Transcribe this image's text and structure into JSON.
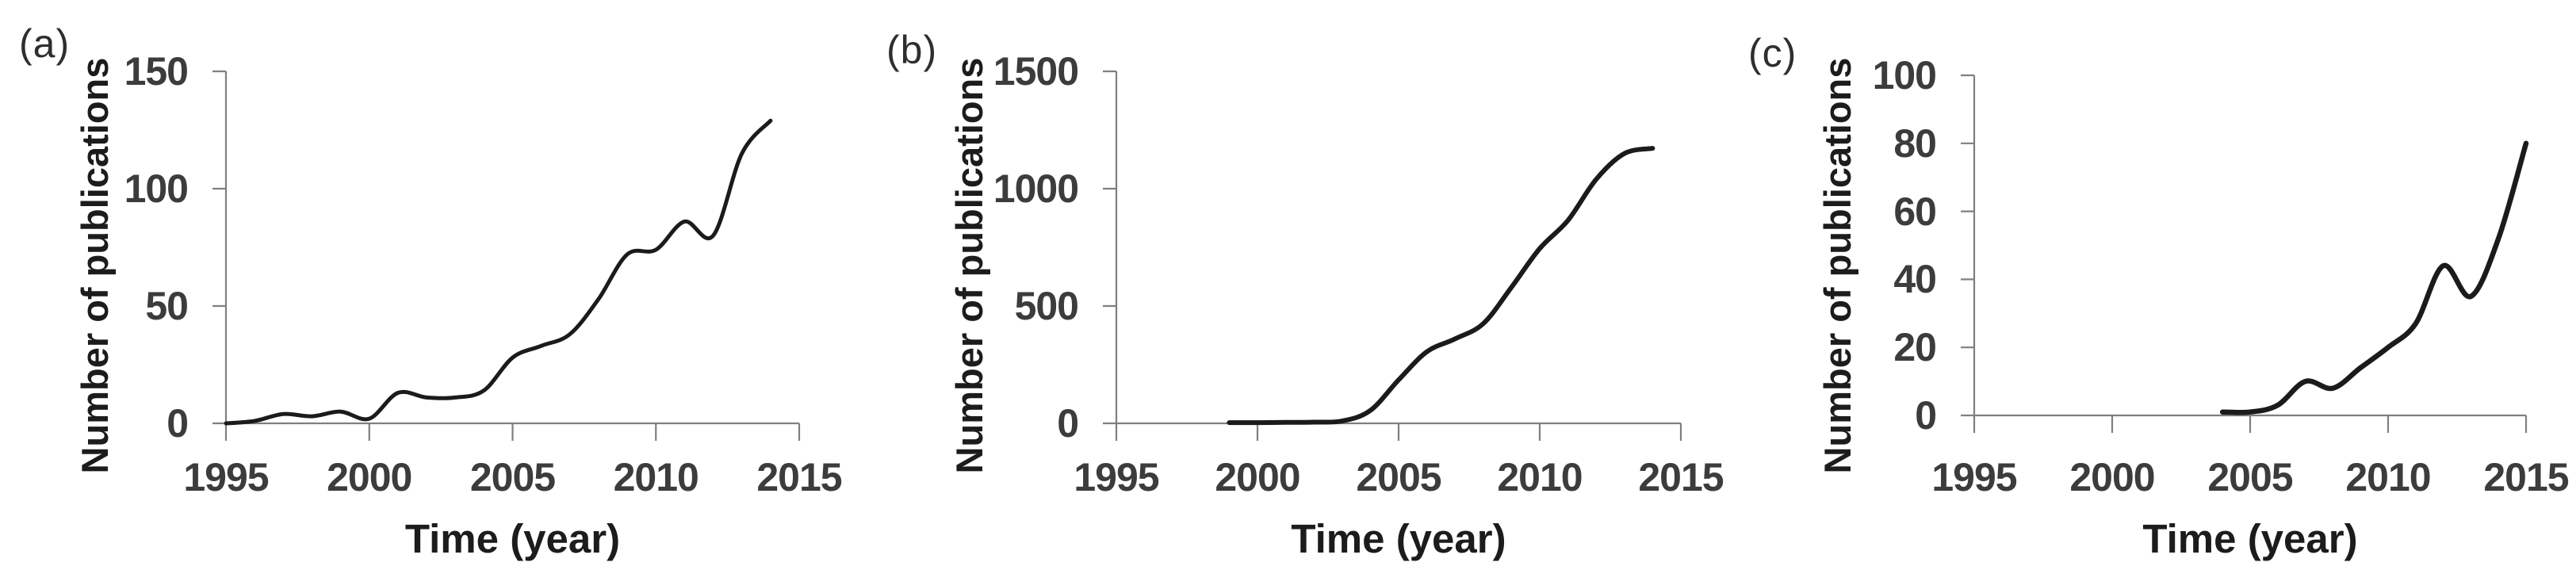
{
  "figure": {
    "background": "#ffffff",
    "description": "Three smoothed line charts of publication counts over time, panels (a), (b), (c)"
  },
  "style": {
    "curve_color": "#1b1b1b",
    "axis_color": "#7f7f7f",
    "tick_label_color": "#3c3c3c",
    "title_color": "#1c1c1c",
    "panel_label_color": "#2e2e2e"
  },
  "chart_data": [
    {
      "panel_label": "(a)",
      "type": "line",
      "title": "",
      "xlabel": "Time (year)",
      "ylabel": "Number of publications",
      "x_ticks": [
        1995,
        2000,
        2005,
        2010,
        2015
      ],
      "y_ticks": [
        0,
        50,
        100,
        150
      ],
      "xlim": [
        1995,
        2015
      ],
      "ylim": [
        0,
        150
      ],
      "grid": false,
      "legend": null,
      "series": [
        {
          "name": "publications",
          "x": [
            1995,
            1996,
            1997,
            1998,
            1999,
            2000,
            2001,
            2002,
            2003,
            2004,
            2005,
            2006,
            2007,
            2008,
            2009,
            2010,
            2011,
            2012,
            2013,
            2014
          ],
          "y": [
            0,
            1,
            4,
            3,
            5,
            2,
            13,
            11,
            11,
            14,
            28,
            33,
            38,
            53,
            72,
            74,
            86,
            80,
            115,
            129
          ]
        }
      ]
    },
    {
      "panel_label": "(b)",
      "type": "line",
      "title": "",
      "xlabel": "Time (year)",
      "ylabel": "Number of publications",
      "x_ticks": [
        1995,
        2000,
        2005,
        2010,
        2015
      ],
      "y_ticks": [
        0,
        500,
        1000,
        1500
      ],
      "xlim": [
        1995,
        2015
      ],
      "ylim": [
        0,
        1500
      ],
      "grid": false,
      "legend": null,
      "series": [
        {
          "name": "publications",
          "x": [
            1999,
            2000,
            2001,
            2002,
            2003,
            2004,
            2005,
            2006,
            2007,
            2008,
            2009,
            2010,
            2011,
            2012,
            2013,
            2014
          ],
          "y": [
            3,
            3,
            4,
            5,
            10,
            55,
            185,
            305,
            360,
            425,
            580,
            745,
            865,
            1040,
            1150,
            1172
          ]
        }
      ]
    },
    {
      "panel_label": "(c)",
      "type": "line",
      "title": "",
      "xlabel": "Time (year)",
      "ylabel": "Number of publications",
      "x_ticks": [
        1995,
        2000,
        2005,
        2010,
        2015
      ],
      "y_ticks": [
        0,
        20,
        40,
        60,
        80,
        100
      ],
      "xlim": [
        1995,
        2015
      ],
      "ylim": [
        0,
        100
      ],
      "grid": false,
      "legend": null,
      "series": [
        {
          "name": "publications",
          "x": [
            2004,
            2005,
            2006,
            2007,
            2008,
            2009,
            2010,
            2011,
            2012,
            2013,
            2014,
            2015
          ],
          "y": [
            1,
            1,
            3,
            10,
            8,
            14,
            20,
            27,
            44,
            35,
            52,
            80
          ]
        }
      ]
    }
  ]
}
